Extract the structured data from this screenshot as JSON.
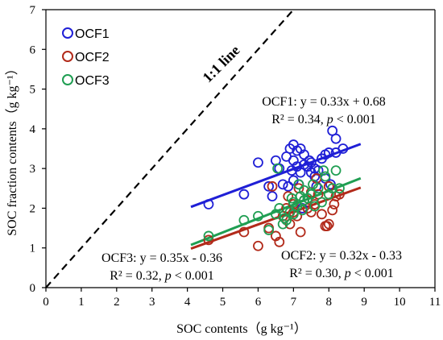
{
  "chart_data": {
    "type": "scatter",
    "xlabel": "SOC contents（g kg⁻¹）",
    "ylabel": "SOC fraction contents（g kg⁻¹）",
    "xlim": [
      0,
      11
    ],
    "ylim": [
      0,
      7
    ],
    "xticks": [
      "0",
      "1",
      "2",
      "3",
      "4",
      "5",
      "6",
      "7",
      "8",
      "9",
      "10",
      "11"
    ],
    "yticks": [
      "0",
      "1",
      "2",
      "3",
      "4",
      "5",
      "6",
      "7"
    ],
    "grid": false,
    "legend_position": "top-left",
    "reference_line": {
      "label": "1:1 line",
      "from": [
        0,
        0
      ],
      "to": [
        7,
        7
      ]
    },
    "series": [
      {
        "name": "OCF1",
        "color": "#1f1fd6",
        "fit": {
          "line1": "OCF1: y = 0.33x + 0.68",
          "r2_prefix": "R² = 0.34, ",
          "p_symbol": "p",
          "p_rest": " < 0.001",
          "x_range": [
            4.1,
            8.9
          ],
          "slope": 0.33,
          "intercept": 0.68
        },
        "points": [
          [
            4.6,
            2.1
          ],
          [
            5.6,
            2.35
          ],
          [
            6.0,
            3.15
          ],
          [
            6.4,
            2.3
          ],
          [
            6.5,
            3.2
          ],
          [
            6.6,
            3.0
          ],
          [
            6.7,
            2.6
          ],
          [
            6.8,
            3.3
          ],
          [
            6.9,
            3.5
          ],
          [
            7.0,
            3.2
          ],
          [
            7.0,
            3.6
          ],
          [
            7.1,
            3.45
          ],
          [
            7.2,
            3.5
          ],
          [
            7.2,
            2.9
          ],
          [
            7.3,
            3.35
          ],
          [
            7.3,
            3.1
          ],
          [
            7.4,
            3.05
          ],
          [
            7.5,
            3.15
          ],
          [
            7.5,
            2.9
          ],
          [
            7.6,
            3.0
          ],
          [
            7.7,
            2.95
          ],
          [
            7.8,
            3.25
          ],
          [
            7.9,
            3.35
          ],
          [
            8.0,
            3.4
          ],
          [
            8.1,
            3.95
          ],
          [
            8.2,
            3.4
          ],
          [
            8.2,
            3.75
          ],
          [
            8.4,
            3.5
          ],
          [
            7.9,
            2.75
          ],
          [
            7.6,
            2.8
          ],
          [
            6.85,
            2.55
          ],
          [
            7.15,
            2.6
          ],
          [
            6.3,
            2.55
          ],
          [
            6.95,
            2.95
          ],
          [
            7.1,
            3.05
          ],
          [
            7.45,
            3.2
          ],
          [
            7.65,
            2.55
          ],
          [
            7.0,
            2.7
          ],
          [
            8.05,
            2.6
          ],
          [
            7.25,
            2.0
          ]
        ]
      },
      {
        "name": "OCF2",
        "color": "#b22a1a",
        "fit": {
          "line1": "OCF2: y = 0.32x - 0.33",
          "r2_prefix": "R² = 0.30, ",
          "p_symbol": "p",
          "p_rest": " < 0.001",
          "x_range": [
            4.1,
            8.9
          ],
          "slope": 0.32,
          "intercept": -0.33
        },
        "points": [
          [
            4.6,
            1.2
          ],
          [
            5.6,
            1.4
          ],
          [
            6.0,
            1.05
          ],
          [
            6.3,
            1.5
          ],
          [
            6.4,
            2.55
          ],
          [
            6.5,
            1.3
          ],
          [
            6.6,
            1.15
          ],
          [
            6.7,
            1.8
          ],
          [
            6.8,
            2.0
          ],
          [
            6.9,
            1.6
          ],
          [
            7.0,
            1.9
          ],
          [
            7.0,
            2.1
          ],
          [
            7.1,
            1.8
          ],
          [
            7.2,
            1.4
          ],
          [
            7.3,
            2.2
          ],
          [
            7.4,
            2.0
          ],
          [
            7.5,
            1.9
          ],
          [
            7.6,
            2.1
          ],
          [
            7.7,
            2.35
          ],
          [
            7.8,
            1.85
          ],
          [
            7.9,
            1.55
          ],
          [
            8.0,
            1.6
          ],
          [
            8.0,
            2.55
          ],
          [
            8.1,
            1.95
          ],
          [
            8.2,
            2.3
          ],
          [
            8.3,
            2.35
          ],
          [
            7.95,
            1.55
          ],
          [
            7.5,
            2.4
          ],
          [
            6.85,
            2.3
          ],
          [
            7.15,
            2.5
          ],
          [
            7.65,
            2.75
          ],
          [
            8.15,
            2.1
          ]
        ]
      },
      {
        "name": "OCF3",
        "color": "#1f9e52",
        "fit": {
          "line1": "OCF3: y = 0.35x - 0.36",
          "r2_prefix": "R² = 0.32,  ",
          "p_symbol": "p",
          "p_rest": " < 0.001",
          "x_range": [
            4.1,
            8.9
          ],
          "slope": 0.35,
          "intercept": -0.36
        },
        "points": [
          [
            4.6,
            1.3
          ],
          [
            5.6,
            1.7
          ],
          [
            6.0,
            1.8
          ],
          [
            6.3,
            1.45
          ],
          [
            6.5,
            1.85
          ],
          [
            6.6,
            2.0
          ],
          [
            6.7,
            1.6
          ],
          [
            6.8,
            1.7
          ],
          [
            6.9,
            1.9
          ],
          [
            7.0,
            2.15
          ],
          [
            7.0,
            1.85
          ],
          [
            7.1,
            2.05
          ],
          [
            7.2,
            2.3
          ],
          [
            7.3,
            2.2
          ],
          [
            7.3,
            2.45
          ],
          [
            7.4,
            2.25
          ],
          [
            7.5,
            2.35
          ],
          [
            7.6,
            2.05
          ],
          [
            7.7,
            2.5
          ],
          [
            7.8,
            2.15
          ],
          [
            7.9,
            2.8
          ],
          [
            8.0,
            2.35
          ],
          [
            8.1,
            2.5
          ],
          [
            8.2,
            2.95
          ],
          [
            8.3,
            2.5
          ],
          [
            6.55,
            3.0
          ],
          [
            7.85,
            2.95
          ],
          [
            7.15,
            2.6
          ],
          [
            6.95,
            2.25
          ],
          [
            7.55,
            2.6
          ],
          [
            6.75,
            1.75
          ],
          [
            7.25,
            1.95
          ]
        ]
      }
    ]
  }
}
